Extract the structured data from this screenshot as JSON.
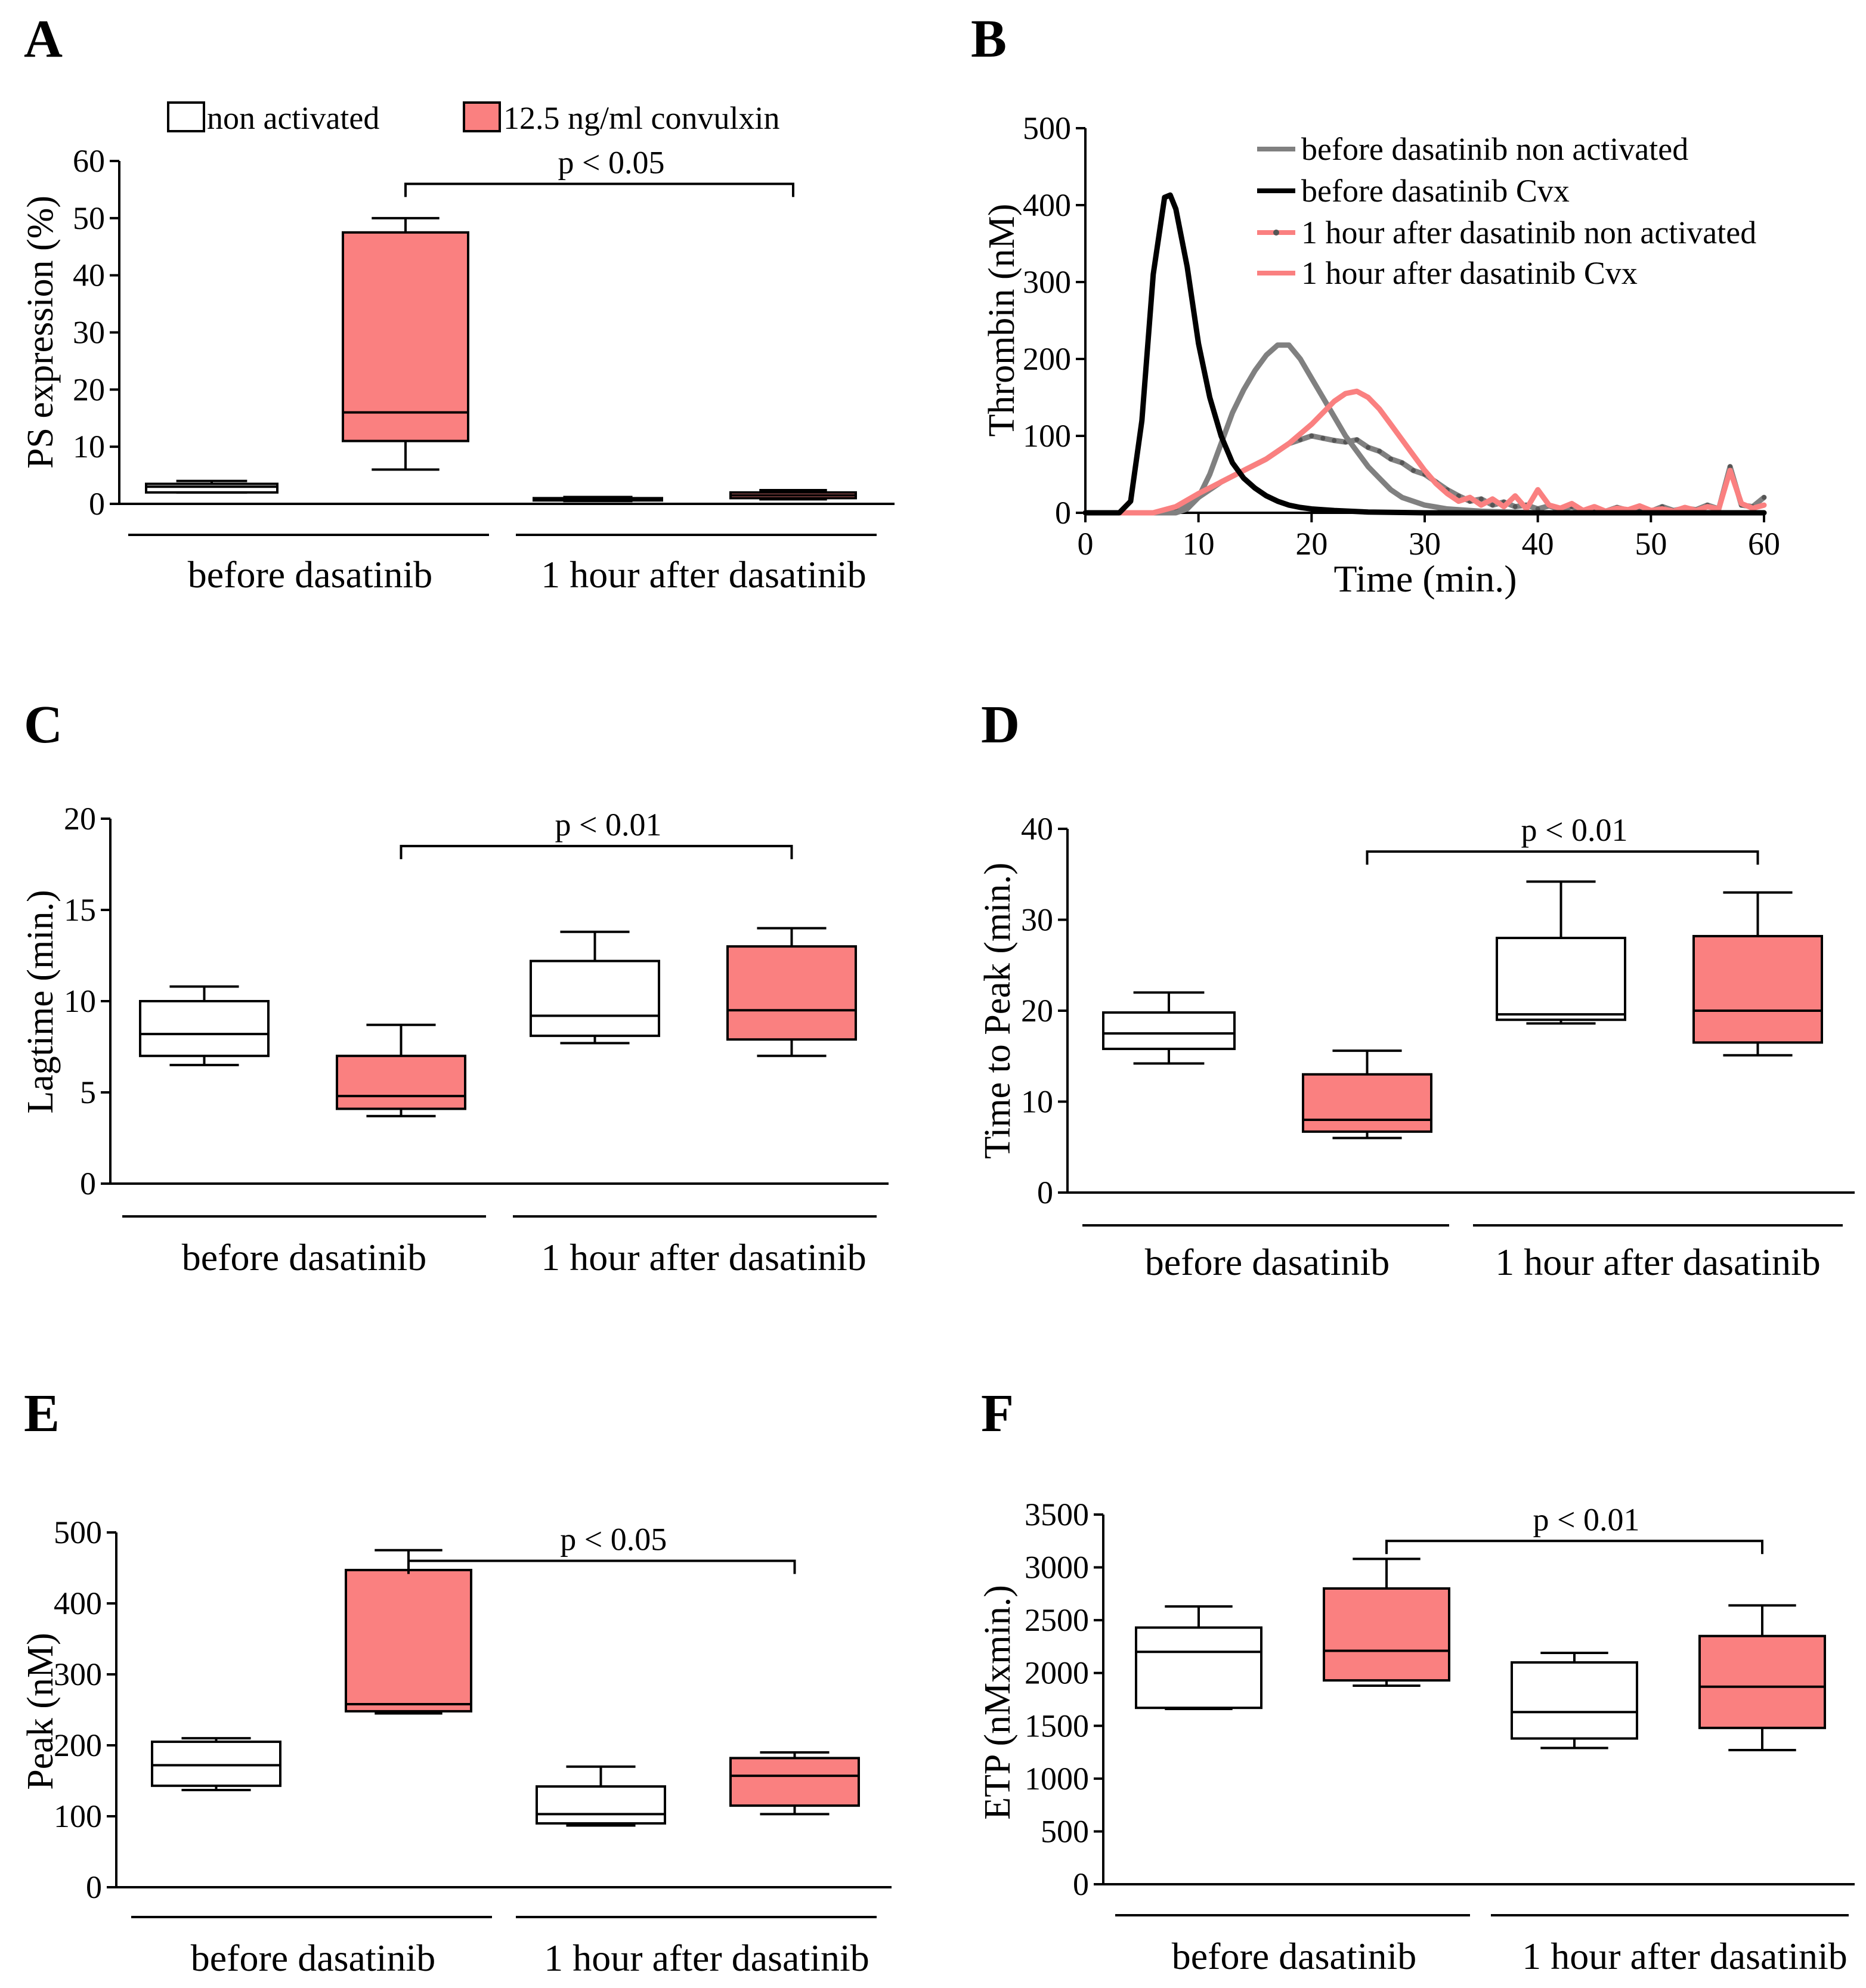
{
  "colors": {
    "non_activated": "#ffffff",
    "convulxin": "#fa8080",
    "line_grey": "#808080",
    "line_black": "#000000",
    "line_red": "#fa8080"
  },
  "chart_data": [
    {
      "id": "A",
      "panel_label": "A",
      "type": "box",
      "ylabel": "PS expression (%)",
      "ylim": [
        0,
        60
      ],
      "yticks": [
        0,
        10,
        20,
        30,
        40,
        50,
        60
      ],
      "legend": {
        "placement": "top",
        "entries": [
          "non activated",
          "12.5 ng/ml convulxin"
        ]
      },
      "groups": [
        "before dasatinib",
        "1 hour after dasatinib"
      ],
      "boxes": [
        {
          "series": "non activated",
          "group": "before dasatinib",
          "whisker_low": 2,
          "q1": 2,
          "median": 3,
          "q3": 3.5,
          "whisker_high": 4
        },
        {
          "series": "12.5 ng/ml convulxin",
          "group": "before dasatinib",
          "whisker_low": 6,
          "q1": 11,
          "median": 16,
          "q3": 47.5,
          "whisker_high": 50
        },
        {
          "series": "non activated",
          "group": "1 hour after dasatinib",
          "whisker_low": 0.5,
          "q1": 0.6,
          "median": 0.8,
          "q3": 1,
          "whisker_high": 1.2
        },
        {
          "series": "12.5 ng/ml convulxin",
          "group": "1 hour after dasatinib",
          "whisker_low": 0.8,
          "q1": 1,
          "median": 1.5,
          "q3": 2,
          "whisker_high": 2.4
        }
      ],
      "significance": {
        "text": "p < 0.05",
        "from_box": 1,
        "to_box": 3,
        "y": 56
      }
    },
    {
      "id": "B",
      "panel_label": "B",
      "type": "line",
      "xlabel": "Time (min.)",
      "ylabel": "Thrombin (nM)",
      "xlim": [
        0,
        60
      ],
      "ylim": [
        0,
        500
      ],
      "xticks": [
        0,
        10,
        20,
        30,
        40,
        50,
        60
      ],
      "yticks": [
        0,
        100,
        200,
        300,
        400,
        500
      ],
      "legend": {
        "placement": "top-right"
      },
      "series": [
        {
          "name": "before dasatinib non activated",
          "color": "#808080",
          "dotted": false,
          "x": [
            0,
            5,
            8,
            9,
            10,
            11,
            12,
            13,
            14,
            15,
            16,
            17,
            18,
            19,
            20,
            21,
            22,
            23,
            24,
            25,
            26,
            27,
            28,
            30,
            32,
            35,
            40,
            50,
            60
          ],
          "y": [
            0,
            0,
            0,
            5,
            20,
            50,
            90,
            130,
            160,
            185,
            205,
            218,
            218,
            200,
            175,
            150,
            125,
            100,
            80,
            60,
            45,
            30,
            20,
            10,
            5,
            2,
            0,
            0,
            0
          ]
        },
        {
          "name": "before dasatinib Cvx",
          "color": "#000000",
          "dotted": false,
          "x": [
            0,
            3,
            4,
            5,
            6,
            7,
            7.5,
            8,
            9,
            10,
            11,
            12,
            13,
            14,
            15,
            16,
            17,
            18,
            19,
            20,
            22,
            25,
            30,
            40,
            60
          ],
          "y": [
            0,
            0,
            15,
            120,
            310,
            410,
            413,
            395,
            320,
            220,
            150,
            100,
            65,
            45,
            32,
            22,
            15,
            10,
            7,
            5,
            3,
            1,
            0,
            0,
            0
          ]
        },
        {
          "name": "1 hour after dasatinib non activated",
          "color": "#808080",
          "dotted": true,
          "x": [
            0,
            6,
            8,
            10,
            12,
            14,
            16,
            18,
            19,
            20,
            21,
            22,
            23,
            24,
            25,
            26,
            27,
            28,
            29,
            30,
            31,
            32,
            33,
            34,
            35,
            36,
            37,
            38,
            39,
            40,
            41,
            42,
            43,
            44,
            45,
            46,
            47,
            48,
            49,
            50,
            51,
            52,
            53,
            54,
            55,
            56,
            57,
            58,
            59,
            60
          ],
          "y": [
            0,
            0,
            5,
            20,
            40,
            55,
            70,
            90,
            95,
            100,
            97,
            94,
            92,
            95,
            85,
            80,
            70,
            65,
            55,
            50,
            40,
            30,
            22,
            15,
            18,
            10,
            14,
            8,
            10,
            5,
            9,
            4,
            8,
            3,
            6,
            2,
            7,
            3,
            5,
            2,
            8,
            3,
            6,
            4,
            10,
            5,
            60,
            10,
            8,
            20
          ]
        },
        {
          "name": "1 hour after dasatinib Cvx",
          "color": "#fa8080",
          "dotted": false,
          "x": [
            0,
            6,
            8,
            10,
            12,
            14,
            16,
            18,
            20,
            22,
            23,
            24,
            25,
            26,
            27,
            28,
            29,
            30,
            31,
            32,
            33,
            34,
            35,
            36,
            37,
            38,
            39,
            40,
            41,
            42,
            43,
            44,
            45,
            46,
            47,
            48,
            49,
            50,
            51,
            52,
            53,
            54,
            55,
            56,
            57,
            58,
            59,
            60
          ],
          "y": [
            0,
            0,
            8,
            25,
            40,
            55,
            70,
            90,
            115,
            145,
            155,
            158,
            150,
            135,
            115,
            95,
            75,
            55,
            38,
            25,
            15,
            20,
            10,
            18,
            8,
            22,
            5,
            30,
            10,
            6,
            12,
            3,
            8,
            2,
            6,
            4,
            9,
            3,
            5,
            2,
            7,
            3,
            8,
            5,
            55,
            12,
            6,
            10
          ]
        }
      ]
    },
    {
      "id": "C",
      "panel_label": "C",
      "type": "box",
      "ylabel": "Lagtime (min.)",
      "ylim": [
        0,
        20
      ],
      "yticks": [
        0,
        5,
        10,
        15,
        20
      ],
      "groups": [
        "before dasatinib",
        "1 hour after dasatinib"
      ],
      "boxes": [
        {
          "series": "non activated",
          "group": "before dasatinib",
          "whisker_low": 6.5,
          "q1": 7,
          "median": 8.2,
          "q3": 10,
          "whisker_high": 10.8
        },
        {
          "series": "12.5 ng/ml convulxin",
          "group": "before dasatinib",
          "whisker_low": 3.7,
          "q1": 4.1,
          "median": 4.8,
          "q3": 7,
          "whisker_high": 8.7
        },
        {
          "series": "non activated",
          "group": "1 hour after dasatinib",
          "whisker_low": 7.7,
          "q1": 8.1,
          "median": 9.2,
          "q3": 12.2,
          "whisker_high": 13.8
        },
        {
          "series": "12.5 ng/ml convulxin",
          "group": "1 hour after dasatinib",
          "whisker_low": 7,
          "q1": 7.9,
          "median": 9.5,
          "q3": 13,
          "whisker_high": 14
        }
      ],
      "significance": {
        "text": "p < 0.01",
        "from_box": 1,
        "to_box": 3,
        "y": 18.5
      }
    },
    {
      "id": "D",
      "panel_label": "D",
      "type": "box",
      "ylabel": "Time to Peak (min.)",
      "ylim": [
        0,
        40
      ],
      "yticks": [
        0,
        10,
        20,
        30,
        40
      ],
      "groups": [
        "before dasatinib",
        "1 hour after dasatinib"
      ],
      "boxes": [
        {
          "series": "non activated",
          "group": "before dasatinib",
          "whisker_low": 14.2,
          "q1": 15.8,
          "median": 17.5,
          "q3": 19.8,
          "whisker_high": 22
        },
        {
          "series": "12.5 ng/ml convulxin",
          "group": "before dasatinib",
          "whisker_low": 6,
          "q1": 6.7,
          "median": 8,
          "q3": 13,
          "whisker_high": 15.6
        },
        {
          "series": "non activated",
          "group": "1 hour after dasatinib",
          "whisker_low": 18.6,
          "q1": 19,
          "median": 19.6,
          "q3": 28,
          "whisker_high": 34.2
        },
        {
          "series": "12.5 ng/ml convulxin",
          "group": "1 hour after dasatinib",
          "whisker_low": 15.1,
          "q1": 16.5,
          "median": 20,
          "q3": 28.2,
          "whisker_high": 33
        }
      ],
      "significance": {
        "text": "p < 0.01",
        "from_box": 1,
        "to_box": 3,
        "y": 37.5
      }
    },
    {
      "id": "E",
      "panel_label": "E",
      "type": "box",
      "ylabel": "Peak (nM)",
      "ylim": [
        0,
        500
      ],
      "yticks": [
        0,
        100,
        200,
        300,
        400,
        500
      ],
      "groups": [
        "before dasatinib",
        "1 hour after dasatinib"
      ],
      "boxes": [
        {
          "series": "non activated",
          "group": "before dasatinib",
          "whisker_low": 137,
          "q1": 143,
          "median": 172,
          "q3": 205,
          "whisker_high": 210
        },
        {
          "series": "12.5 ng/ml convulxin",
          "group": "before dasatinib",
          "whisker_low": 245,
          "q1": 248,
          "median": 258,
          "q3": 447,
          "whisker_high": 475
        },
        {
          "series": "non activated",
          "group": "1 hour after dasatinib",
          "whisker_low": 87,
          "q1": 90,
          "median": 103,
          "q3": 142,
          "whisker_high": 170
        },
        {
          "series": "12.5 ng/ml convulxin",
          "group": "1 hour after dasatinib",
          "whisker_low": 103,
          "q1": 115,
          "median": 157,
          "q3": 182,
          "whisker_high": 190
        }
      ],
      "significance": {
        "text": "p < 0.05",
        "from_box": 1,
        "to_box": 3,
        "y": 460
      }
    },
    {
      "id": "F",
      "panel_label": "F",
      "type": "box",
      "ylabel": "ETP (nMxmin.)",
      "ylim": [
        0,
        3500
      ],
      "yticks": [
        0,
        500,
        1000,
        1500,
        2000,
        2500,
        3000,
        3500
      ],
      "groups": [
        "before dasatinib",
        "1 hour after dasatinib"
      ],
      "boxes": [
        {
          "series": "non activated",
          "group": "before dasatinib",
          "whisker_low": 1660,
          "q1": 1670,
          "median": 2200,
          "q3": 2430,
          "whisker_high": 2630
        },
        {
          "series": "12.5 ng/ml convulxin",
          "group": "before dasatinib",
          "whisker_low": 1880,
          "q1": 1930,
          "median": 2210,
          "q3": 2800,
          "whisker_high": 3080
        },
        {
          "series": "non activated",
          "group": "1 hour after dasatinib",
          "whisker_low": 1290,
          "q1": 1380,
          "median": 1630,
          "q3": 2100,
          "whisker_high": 2190
        },
        {
          "series": "12.5 ng/ml convulxin",
          "group": "1 hour after dasatinib",
          "whisker_low": 1270,
          "q1": 1480,
          "median": 1870,
          "q3": 2350,
          "whisker_high": 2640
        }
      ],
      "significance": {
        "text": "p < 0.01",
        "from_box": 1,
        "to_box": 3,
        "y": 3250
      }
    }
  ]
}
